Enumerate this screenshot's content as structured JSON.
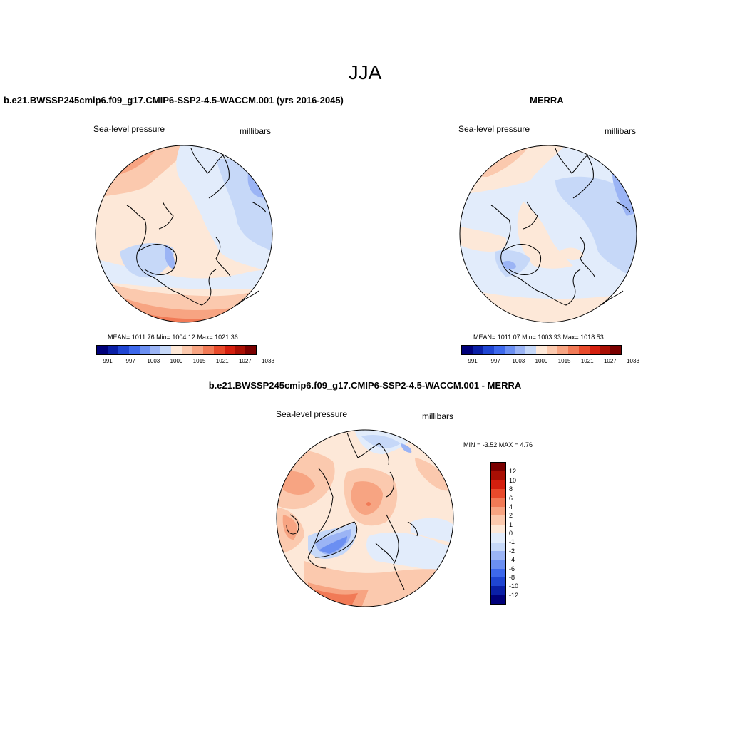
{
  "page_title": "JJA",
  "panels": {
    "model": {
      "title": "b.e21.BWSSP245cmip6.f09_g17.CMIP6-SSP2-4.5-WACCM.001 (yrs 2016-2045)",
      "variable": "Sea-level pressure",
      "units": "millibars",
      "stats": "MEAN= 1011.76  Min= 1004.12  Max= 1021.36"
    },
    "obs": {
      "title": "MERRA",
      "variable": "Sea-level pressure",
      "units": "millibars",
      "stats": "MEAN= 1011.07  Min= 1003.93  Max= 1018.53"
    },
    "diff": {
      "title": "b.e21.BWSSP245cmip6.f09_g17.CMIP6-SSP2-4.5-WACCM.001 - MERRA",
      "variable": "Sea-level pressure",
      "units": "millibars",
      "minmax": "MIN =  -3.52 MAX =   4.76"
    }
  },
  "colorbar_abs": {
    "colors": [
      "#00007a",
      "#0a1fa6",
      "#1f45d2",
      "#3d68ec",
      "#6b8ff2",
      "#9bb4f5",
      "#c6d8f8",
      "#fde8d8",
      "#fbc9ae",
      "#f7a482",
      "#f17a56",
      "#e84a2b",
      "#d41f0e",
      "#a90f04",
      "#7a0000"
    ],
    "tick_labels": [
      "991",
      "997",
      "1003",
      "1009",
      "1015",
      "1021",
      "1027",
      "1033"
    ]
  },
  "colorbar_diff": {
    "colors": [
      "#7a0000",
      "#a90f04",
      "#d41f0e",
      "#e84a2b",
      "#f17a56",
      "#f7a482",
      "#fbc9ae",
      "#fde8d8",
      "#e2ecfb",
      "#c6d8f8",
      "#9bb4f5",
      "#6b8ff2",
      "#3d68ec",
      "#1f45d2",
      "#0a1fa6",
      "#00007a"
    ],
    "labels": [
      "12",
      "10",
      "8",
      "6",
      "4",
      "2",
      "1",
      "0",
      "-1",
      "-2",
      "-4",
      "-6",
      "-8",
      "-10",
      "-12"
    ]
  }
}
